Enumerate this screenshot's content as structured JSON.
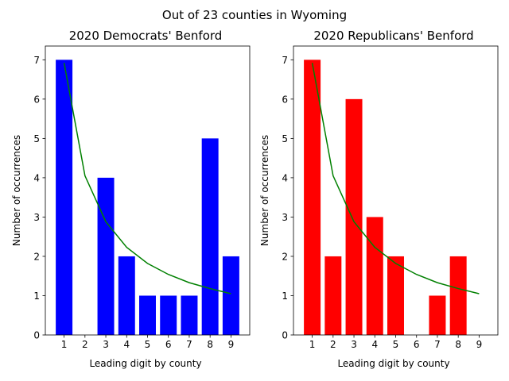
{
  "suptitle": "Out of 23 counties in Wyoming",
  "chart_data": [
    {
      "type": "bar",
      "title": "2020 Democrats' Benford",
      "xlabel": "Leading digit by county",
      "ylabel": "Number of occurrences",
      "categories": [
        1,
        2,
        3,
        4,
        5,
        6,
        7,
        8,
        9
      ],
      "values": [
        7,
        0,
        4,
        2,
        1,
        1,
        1,
        5,
        2
      ],
      "bar_color": "#0000ff",
      "ylim": [
        0,
        7.35
      ],
      "yticks": [
        0,
        1,
        2,
        3,
        4,
        5,
        6,
        7
      ],
      "benford_line": {
        "color": "#008000",
        "x": [
          1,
          2,
          3,
          4,
          5,
          6,
          7,
          8,
          9
        ],
        "y": [
          6.92,
          4.05,
          2.88,
          2.23,
          1.82,
          1.54,
          1.33,
          1.18,
          1.05
        ]
      }
    },
    {
      "type": "bar",
      "title": "2020 Republicans' Benford",
      "xlabel": "Leading digit by county",
      "ylabel": "Number of occurrences",
      "categories": [
        1,
        2,
        3,
        4,
        5,
        6,
        7,
        8,
        9
      ],
      "values": [
        7,
        2,
        6,
        3,
        2,
        0,
        1,
        2,
        0
      ],
      "bar_color": "#ff0000",
      "ylim": [
        0,
        7.35
      ],
      "yticks": [
        0,
        1,
        2,
        3,
        4,
        5,
        6,
        7
      ],
      "benford_line": {
        "color": "#008000",
        "x": [
          1,
          2,
          3,
          4,
          5,
          6,
          7,
          8,
          9
        ],
        "y": [
          6.92,
          4.05,
          2.88,
          2.23,
          1.82,
          1.54,
          1.33,
          1.18,
          1.05
        ]
      }
    }
  ]
}
